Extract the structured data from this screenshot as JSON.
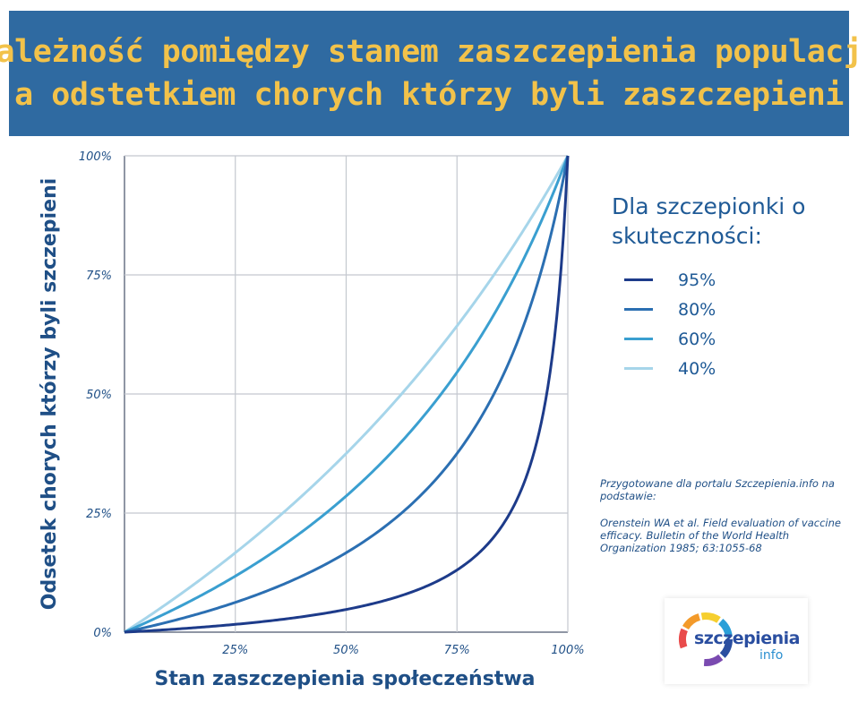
{
  "banner": {
    "line1": "Zależność pomiędzy stanem zaszczepienia populacji",
    "line2": "a odstetkiem chorych którzy byli zaszczepieni"
  },
  "chart_data": {
    "type": "line",
    "xlabel": "Stan zaszczepienia społeczeństwa",
    "ylabel": "Odsetek chorych którzy byli szczepieni",
    "xlim": [
      0,
      100
    ],
    "ylim": [
      0,
      100
    ],
    "xticks": [
      "",
      "25%",
      "50%",
      "75%",
      "100%"
    ],
    "yticks": [
      "0%",
      "25%",
      "50%",
      "75%",
      "100%"
    ],
    "grid": true,
    "legend_title": "Dla szczepionki o skuteczności:",
    "legend_position": "right",
    "series": [
      {
        "name": "95%",
        "efficacy": 0.95,
        "color": "#1d3b8a",
        "x": [
          0,
          10,
          25,
          50,
          60,
          70,
          75,
          80,
          85,
          90,
          95,
          98,
          100
        ],
        "y": [
          0,
          0.6,
          1.6,
          4.8,
          7.0,
          10.4,
          13.0,
          16.7,
          22.1,
          31.0,
          48.7,
          71.0,
          100
        ]
      },
      {
        "name": "80%",
        "efficacy": 0.8,
        "color": "#2b6fb2",
        "x": [
          0,
          10,
          25,
          40,
          50,
          60,
          70,
          75,
          80,
          90,
          95,
          100
        ],
        "y": [
          0,
          2.2,
          6.3,
          11.8,
          16.7,
          23.1,
          31.8,
          37.5,
          44.4,
          64.3,
          79.2,
          100
        ]
      },
      {
        "name": "60%",
        "efficacy": 0.6,
        "color": "#3a9fd0",
        "x": [
          0,
          10,
          25,
          40,
          50,
          60,
          70,
          75,
          80,
          90,
          100
        ],
        "y": [
          0,
          4.3,
          11.8,
          21.1,
          28.6,
          37.5,
          48.3,
          54.5,
          61.5,
          78.3,
          100
        ]
      },
      {
        "name": "40%",
        "efficacy": 0.4,
        "color": "#a6d5ea",
        "x": [
          0,
          10,
          25,
          40,
          50,
          60,
          70,
          75,
          80,
          90,
          100
        ],
        "y": [
          0,
          6.3,
          16.7,
          28.6,
          37.5,
          47.4,
          58.3,
          64.3,
          70.6,
          84.4,
          100
        ]
      }
    ]
  },
  "source": {
    "line1": "Przygotowane dla portalu Szczepienia.info na podstawie:",
    "line2": "Orenstein WA et al. Field evaluation of vaccine efficacy. Bulletin of the World Health Organization 1985; 63:1055-68"
  },
  "logo": {
    "word1": "szczepienia",
    "word2": "info",
    "colors": [
      "#e94b4b",
      "#f39a2a",
      "#f6cf2f",
      "#2a9fd8",
      "#2a4ea0",
      "#7a4ab0"
    ]
  }
}
